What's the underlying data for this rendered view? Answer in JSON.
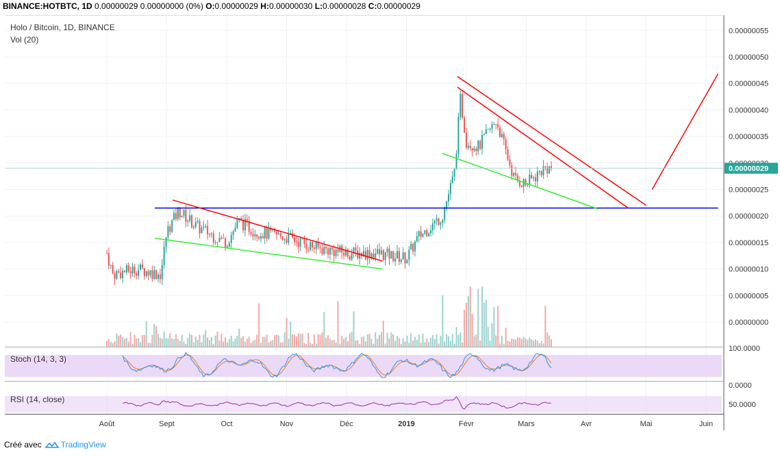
{
  "header": {
    "symbol": "BINANCE:HOTBTC, 1D",
    "last": "0.00000029",
    "change": "0.00000000 (0%)",
    "o_label": "O:",
    "o": "0.00000029",
    "h_label": "H:",
    "h": "0.00000030",
    "l_label": "L:",
    "l": "0.00000028",
    "c_label": "C:",
    "c": "0.00000029"
  },
  "main_panel": {
    "title": "Holo / Bitcoin, 1D, BINANCE",
    "vol_label": "Vol (20)",
    "price_tag": "0.00000029"
  },
  "stoch": {
    "label": "Stoch (14, 3, 3)",
    "axis_top": "100.0000",
    "axis_bottom": "0.0000"
  },
  "rsi": {
    "label": "RSI (14, close)",
    "axis_mid": "50.0000"
  },
  "footer": {
    "created_with": "Créé avec",
    "brand": "TradingView"
  },
  "colors": {
    "up": "#26a69a",
    "down": "#ef5350",
    "vol_up": "#9bd3cd",
    "vol_down": "#f3a9a7",
    "trend_red": "#ff0000",
    "trend_green": "#33ee33",
    "support_blue": "#0000ee",
    "indicator_fill": "#e8d2f7",
    "stoch_k": "#2196f3",
    "stoch_d": "#f57c00",
    "rsi_line": "#9c27b0",
    "price_tag": "#26a69a"
  },
  "chart_data": {
    "type": "candlestick",
    "y_axis_labels": [
      "0.00000055",
      "0.00000050",
      "0.00000045",
      "0.00000040",
      "0.00000035",
      "0.00000030",
      "0.00000025",
      "0.00000020",
      "0.00000015",
      "0.00000010",
      "0.00000005",
      "0.00000000"
    ],
    "x_axis_labels": [
      "Août",
      "Sept",
      "Oct",
      "Nov",
      "Déc",
      "2019",
      "Févr",
      "Mars",
      "Avr",
      "Mai",
      "Juin"
    ],
    "ylim": [
      0,
      5.5e-07
    ],
    "price_anchors": [
      {
        "month": 0.0,
        "close": 1.3e-07
      },
      {
        "month": 0.1,
        "close": 9e-08
      },
      {
        "month": 0.5,
        "close": 1e-07
      },
      {
        "month": 0.9,
        "close": 9e-08
      },
      {
        "month": 1.0,
        "close": 1.7e-07
      },
      {
        "month": 1.2,
        "close": 2.1e-07
      },
      {
        "month": 1.5,
        "close": 1.8e-07
      },
      {
        "month": 2.0,
        "close": 1.5e-07
      },
      {
        "month": 2.2,
        "close": 1.9e-07
      },
      {
        "month": 2.5,
        "close": 1.7e-07
      },
      {
        "month": 3.0,
        "close": 1.6e-07
      },
      {
        "month": 3.5,
        "close": 1.4e-07
      },
      {
        "month": 4.0,
        "close": 1.3e-07
      },
      {
        "month": 4.5,
        "close": 1.3e-07
      },
      {
        "month": 5.0,
        "close": 1.2e-07
      },
      {
        "month": 5.2,
        "close": 1.6e-07
      },
      {
        "month": 5.6,
        "close": 2e-07
      },
      {
        "month": 5.8,
        "close": 2.8e-07
      },
      {
        "month": 5.9,
        "close": 4.2e-07
      },
      {
        "month": 6.0,
        "close": 3.4e-07
      },
      {
        "month": 6.2,
        "close": 3.3e-07
      },
      {
        "month": 6.5,
        "close": 3.8e-07
      },
      {
        "month": 6.8,
        "close": 2.7e-07
      },
      {
        "month": 7.0,
        "close": 2.6e-07
      },
      {
        "month": 7.3,
        "close": 2.9e-07
      },
      {
        "month": 7.45,
        "close": 2.9e-07
      }
    ],
    "drawings": [
      {
        "type": "line",
        "color": "support_blue",
        "from": {
          "month": 0.8,
          "price": 2.15e-07
        },
        "to": {
          "month": 10.2,
          "price": 2.15e-07
        }
      },
      {
        "type": "line",
        "color": "trend_red",
        "from": {
          "month": 1.1,
          "price": 2.3e-07
        },
        "to": {
          "month": 4.6,
          "price": 1.15e-07
        }
      },
      {
        "type": "line",
        "color": "trend_green",
        "from": {
          "month": 0.8,
          "price": 1.58e-07
        },
        "to": {
          "month": 4.6,
          "price": 1e-07
        }
      },
      {
        "type": "line",
        "color": "trend_red",
        "from": {
          "month": 5.85,
          "price": 4.63e-07
        },
        "to": {
          "month": 9.0,
          "price": 2.2e-07
        }
      },
      {
        "type": "line",
        "color": "trend_red",
        "from": {
          "month": 5.85,
          "price": 4.43e-07
        },
        "to": {
          "month": 8.7,
          "price": 2.15e-07
        }
      },
      {
        "type": "line",
        "color": "trend_green",
        "from": {
          "month": 5.6,
          "price": 3.18e-07
        },
        "to": {
          "month": 8.2,
          "price": 2.13e-07
        }
      },
      {
        "type": "line",
        "color": "trend_red",
        "from": {
          "month": 9.1,
          "price": 2.5e-07
        },
        "to": {
          "month": 10.2,
          "price": 4.68e-07
        }
      }
    ]
  }
}
